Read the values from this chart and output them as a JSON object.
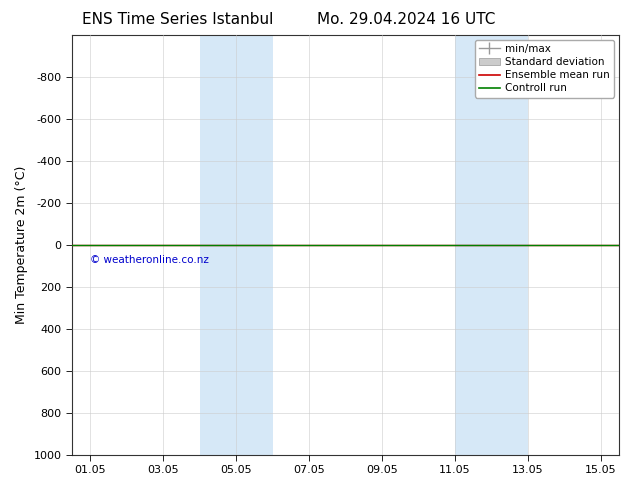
{
  "title_left": "ENS Time Series Istanbul",
  "title_right": "Mo. 29.04.2024 16 UTC",
  "ylabel": "Min Temperature 2m (°C)",
  "ylim_bottom": 1000,
  "ylim_top": -1000,
  "yticks": [
    -800,
    -600,
    -400,
    -200,
    0,
    200,
    400,
    600,
    800,
    1000
  ],
  "xtick_labels": [
    "01.05",
    "03.05",
    "05.05",
    "07.05",
    "09.05",
    "11.05",
    "13.05",
    "15.05"
  ],
  "xtick_positions": [
    1,
    3,
    5,
    7,
    9,
    11,
    13,
    15
  ],
  "xlim": [
    0.5,
    15.5
  ],
  "shaded_bands": [
    {
      "x_start": 4.0,
      "x_end": 6.0
    },
    {
      "x_start": 11.0,
      "x_end": 13.0
    }
  ],
  "band_color": "#d6e8f7",
  "line_y": 0,
  "control_run_color": "#008000",
  "ensemble_mean_color": "#cc0000",
  "minmax_color": "#999999",
  "stddev_fill_color": "#cccccc",
  "copyright_text": "© weatheronline.co.nz",
  "copyright_color": "#0000cc",
  "background_color": "#ffffff",
  "title_fontsize": 11,
  "axis_label_fontsize": 9,
  "tick_fontsize": 8,
  "legend_fontsize": 7.5
}
